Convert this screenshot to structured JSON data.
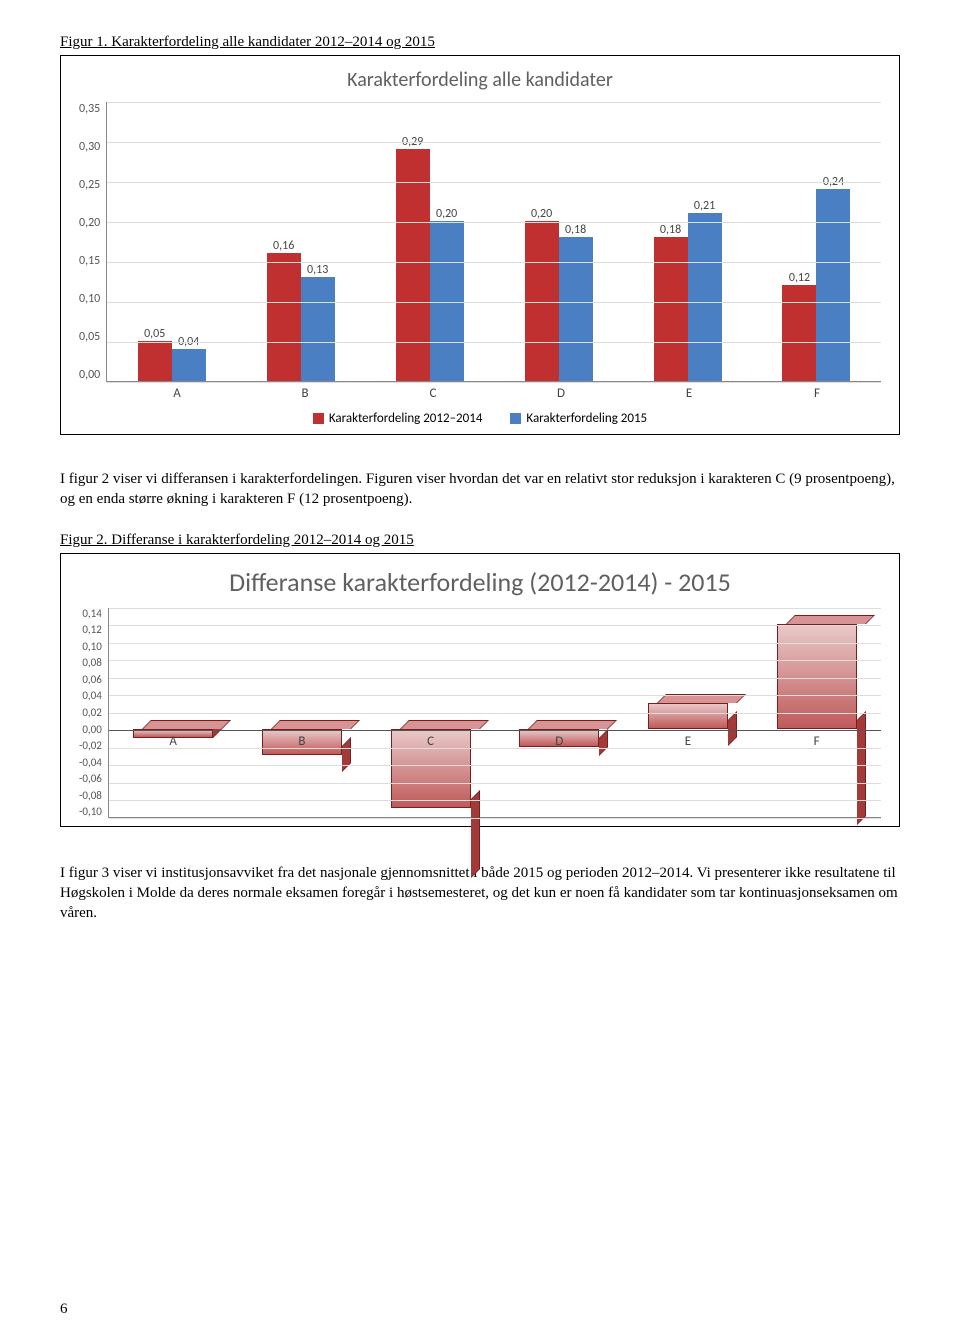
{
  "figure1": {
    "caption": "Figur 1. Karakterfordeling alle kandidater 2012–2014 og 2015",
    "chart": {
      "title": "Karakterfordeling alle kandidater",
      "title_fontsize": 20,
      "title_color": "#606060",
      "ylim": [
        0,
        0.35
      ],
      "ytick_step": 0.05,
      "yticks": [
        "0,35",
        "0,30",
        "0,25",
        "0,20",
        "0,15",
        "0,10",
        "0,05",
        "0,00"
      ],
      "categories": [
        "A",
        "B",
        "C",
        "D",
        "E",
        "F"
      ],
      "series": [
        {
          "name": "Karakterfordeling 2012–2014",
          "color": "#c13030",
          "values": [
            0.05,
            0.16,
            0.29,
            0.2,
            0.18,
            0.12
          ],
          "labels": [
            "0,05",
            "0,16",
            "0,29",
            "0,20",
            "0,18",
            "0,12"
          ]
        },
        {
          "name": "Karakterfordeling 2015",
          "color": "#4a7fc4",
          "values": [
            0.04,
            0.13,
            0.2,
            0.18,
            0.21,
            0.24
          ],
          "labels": [
            "0,04",
            "0,13",
            "0,20",
            "0,18",
            "0,21",
            "0,24"
          ]
        }
      ],
      "grid_color": "#dddddd",
      "axis_color": "#888888",
      "background_color": "#ffffff",
      "label_fontsize": 12
    }
  },
  "para1": "I figur 2 viser vi differansen i karakterfordelingen. Figuren viser hvordan det var en relativt stor reduksjon i karakteren C (9 prosentpoeng), og en enda større økning i karakteren F (12 prosentpoeng).",
  "figure2": {
    "caption": "Figur 2. Differanse i karakterfordeling 2012–2014 og 2015",
    "chart": {
      "title": "Differanse karakterfordeling (2012-2014) - 2015",
      "title_fontsize": 26,
      "title_color": "#606060",
      "ylim": [
        -0.1,
        0.14
      ],
      "ytick_step": 0.02,
      "yticks": [
        "0,14",
        "0,12",
        "0,10",
        "0,08",
        "0,06",
        "0,04",
        "0,02",
        "0,00",
        "-0,02",
        "-0,04",
        "-0,06",
        "-0,08",
        "-0,10"
      ],
      "categories": [
        "A",
        "B",
        "C",
        "D",
        "E",
        "F"
      ],
      "values": [
        -0.01,
        -0.03,
        -0.09,
        -0.02,
        0.03,
        0.12
      ],
      "colors": {
        "top": "#d89494",
        "side": "#a33a3a",
        "front_light": "#e9c9c9",
        "front_dark": "#c05a5a"
      },
      "grid_color": "#dddddd",
      "axis_color": "#888888",
      "background_color": "#ffffff"
    }
  },
  "para2": "I figur 3 viser vi institusjonsavviket fra det nasjonale gjennomsnittet i både 2015 og perioden 2012–2014. Vi presenterer ikke resultatene til Høgskolen i Molde da deres normale eksamen foregår i høstsemesteret, og det kun er noen få kandidater som tar kontinuasjonseksamen om våren.",
  "page_number": "6"
}
